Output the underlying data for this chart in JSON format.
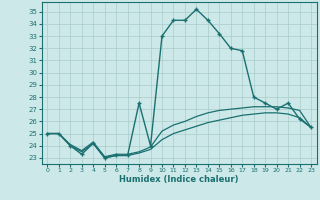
{
  "xlabel": "Humidex (Indice chaleur)",
  "bg_color": "#cde8e8",
  "grid_color": "#aacccc",
  "line_color": "#1a7070",
  "xlim": [
    -0.5,
    23.5
  ],
  "ylim": [
    22.5,
    35.8
  ],
  "yticks": [
    23,
    24,
    25,
    26,
    27,
    28,
    29,
    30,
    31,
    32,
    33,
    34,
    35
  ],
  "xticks": [
    0,
    1,
    2,
    3,
    4,
    5,
    6,
    7,
    8,
    9,
    10,
    11,
    12,
    13,
    14,
    15,
    16,
    17,
    18,
    19,
    20,
    21,
    22,
    23
  ],
  "series": [
    {
      "x": [
        0,
        1,
        2,
        3,
        4,
        5,
        6,
        7,
        8,
        9,
        10,
        11,
        12,
        13,
        14,
        15,
        16,
        17,
        18,
        19,
        20,
        21,
        22,
        23
      ],
      "y": [
        25.0,
        25.0,
        24.0,
        23.3,
        24.2,
        23.0,
        23.2,
        23.2,
        27.5,
        24.0,
        33.0,
        34.3,
        34.3,
        35.2,
        34.3,
        33.2,
        32.0,
        31.8,
        28.0,
        27.5,
        27.0,
        27.5,
        26.2,
        25.5
      ],
      "style": "-",
      "marker": "+",
      "lw": 1.0,
      "ms": 2.5
    },
    {
      "x": [
        0,
        1,
        2,
        3,
        4,
        5,
        6,
        7,
        8,
        9,
        10,
        11,
        12,
        13,
        14,
        15,
        16,
        17,
        18,
        19,
        20,
        21,
        22,
        23
      ],
      "y": [
        25.0,
        25.0,
        24.0,
        23.5,
        24.2,
        23.0,
        23.2,
        23.2,
        23.4,
        23.7,
        24.5,
        25.0,
        25.3,
        25.6,
        25.9,
        26.1,
        26.3,
        26.5,
        26.6,
        26.7,
        26.7,
        26.6,
        26.3,
        25.5
      ],
      "style": "-",
      "marker": null,
      "lw": 0.9,
      "ms": 0
    },
    {
      "x": [
        0,
        1,
        2,
        3,
        4,
        5,
        6,
        7,
        8,
        9,
        10,
        11,
        12,
        13,
        14,
        15,
        16,
        17,
        18,
        19,
        20,
        21,
        22,
        23
      ],
      "y": [
        25.0,
        25.0,
        24.1,
        23.6,
        24.3,
        23.1,
        23.3,
        23.3,
        23.5,
        23.9,
        25.2,
        25.7,
        26.0,
        26.4,
        26.7,
        26.9,
        27.0,
        27.1,
        27.2,
        27.2,
        27.2,
        27.1,
        26.9,
        25.5
      ],
      "style": "-",
      "marker": null,
      "lw": 0.9,
      "ms": 0
    }
  ]
}
